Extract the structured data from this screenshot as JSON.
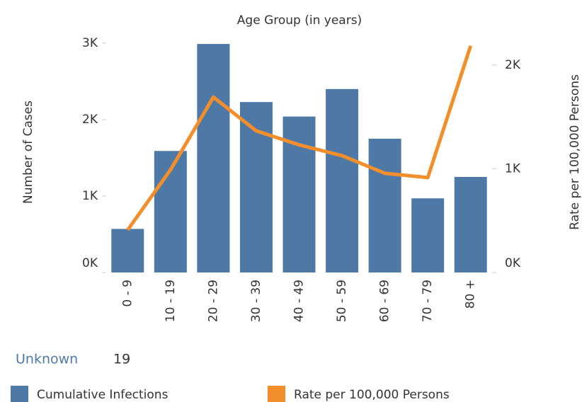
{
  "chart_data": {
    "type": "bar",
    "title": "Age Group (in years)",
    "y_label": "Number of Cases",
    "y2_label": "Rate per 100,000 Persons",
    "categories": [
      "0 - 9",
      "10 - 19",
      "20 - 29",
      "30 - 39",
      "40 - 49",
      "50 - 59",
      "60 - 69",
      "70 - 79",
      "80 +"
    ],
    "series": [
      {
        "name": "Cumulative Infections",
        "color": "#4e79a7",
        "type": "bar",
        "values": [
          570,
          1590,
          2990,
          2230,
          2040,
          2400,
          1750,
          970,
          1250
        ]
      },
      {
        "name": "Rate per 100,000 Persons",
        "color": "#f28e2b",
        "type": "line",
        "axis": "y2",
        "values": [
          410,
          990,
          1690,
          1365,
          1230,
          1126,
          956,
          915,
          2185
        ]
      }
    ],
    "ylim": [
      0,
      3000
    ],
    "yticks": [
      {
        "value": 0,
        "label": "0K"
      },
      {
        "value": 1000,
        "label": "1K"
      },
      {
        "value": 2000,
        "label": "2K"
      },
      {
        "value": 3000,
        "label": "3K"
      }
    ],
    "y2lim": [
      0,
      2210
    ],
    "y2ticks": [
      {
        "value": 0,
        "label": "0K"
      },
      {
        "value": 1000,
        "label": "1K"
      },
      {
        "value": 2000,
        "label": "2K"
      }
    ],
    "grid": false,
    "legend": "bottom"
  },
  "summary": {
    "label": "Unknown",
    "value": 19
  }
}
